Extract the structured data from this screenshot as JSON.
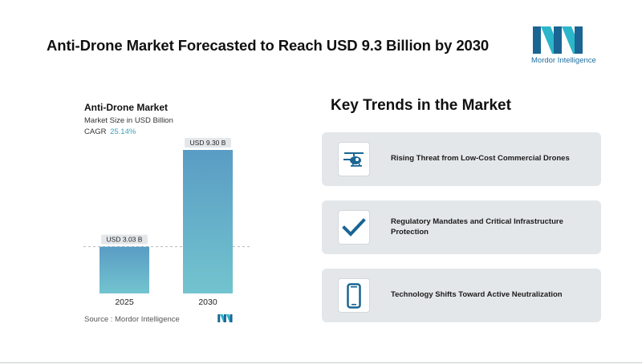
{
  "page": {
    "title": "Anti-Drone Market Forecasted to Reach USD 9.3 Billion by 2030"
  },
  "brand": {
    "name": "Mordor Intelligence",
    "colors": {
      "teal": "#2bb6c9",
      "navy": "#1a6594"
    }
  },
  "chart_data": {
    "type": "bar",
    "title": "Anti-Drone Market",
    "subtitle": "Market Size in USD Billion",
    "cagr_label": "CAGR",
    "cagr_value": "25.14%",
    "categories": [
      "2025",
      "2030"
    ],
    "values": [
      3.03,
      9.3
    ],
    "value_labels": [
      "USD 3.03 B",
      "USD 9.30 B"
    ],
    "ylim": [
      0,
      10
    ],
    "grid": false,
    "reference_line": {
      "value": 3.03,
      "style": "dashed"
    },
    "colors": {
      "bar_top": "#5a9cc4",
      "bar_bottom": "#72c4cf",
      "label_bg": "#e4e7ea"
    },
    "source": "Source :  Mordor Intelligence"
  },
  "trends": {
    "heading": "Key Trends in the Market",
    "items": [
      {
        "label": "Rising Threat from Low-Cost Commercial Drones",
        "icon": "helicopter-icon"
      },
      {
        "label": "Regulatory Mandates and Critical Infrastructure Protection",
        "icon": "checkmark-icon"
      },
      {
        "label": "Technology Shifts Toward Active Neutralization",
        "icon": "mobile-device-icon"
      }
    ],
    "icon_color": "#1a6594"
  }
}
